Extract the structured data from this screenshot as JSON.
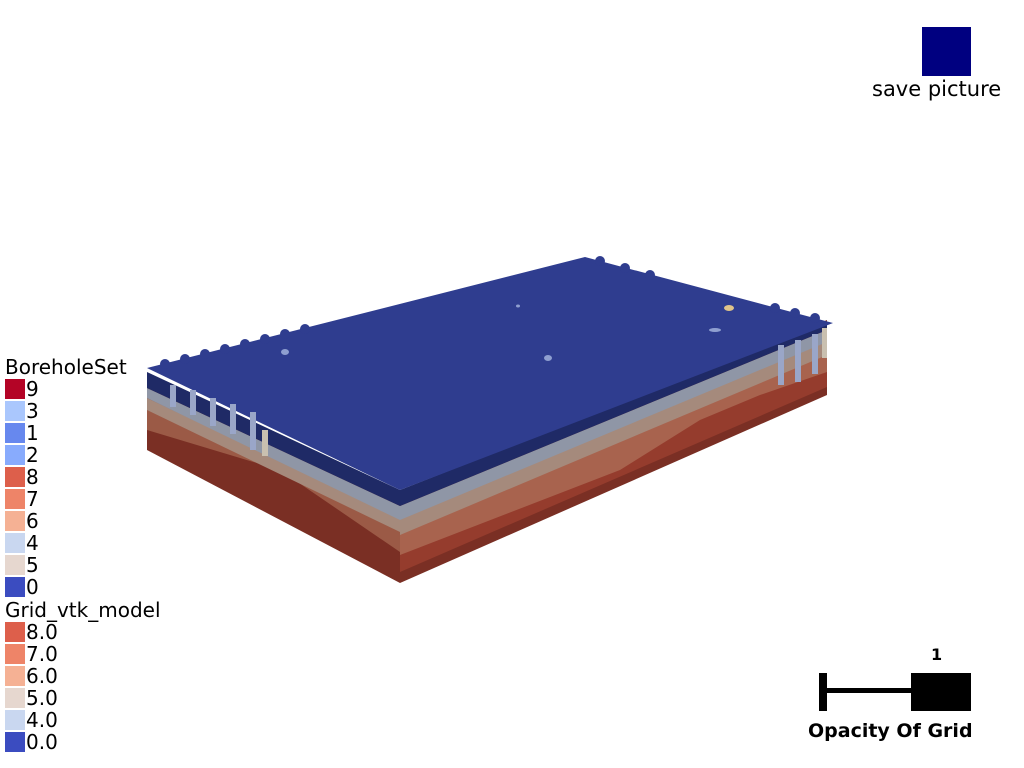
{
  "save_picture": {
    "label": "save picture",
    "color": "#000080"
  },
  "legend_borehole": {
    "title": "BoreholeSet",
    "entries": [
      {
        "label": "9",
        "color": "#b40426"
      },
      {
        "label": "3",
        "color": "#aac7fd"
      },
      {
        "label": "1",
        "color": "#6788ee"
      },
      {
        "label": "2",
        "color": "#88abfd"
      },
      {
        "label": "8",
        "color": "#dd5f4b"
      },
      {
        "label": "7",
        "color": "#ee8468"
      },
      {
        "label": "6",
        "color": "#f5b194"
      },
      {
        "label": "4",
        "color": "#c9d7f0"
      },
      {
        "label": "5",
        "color": "#e6d7cf"
      },
      {
        "label": "0",
        "color": "#3b4cc0"
      }
    ]
  },
  "legend_grid": {
    "title": "Grid_vtk_model",
    "entries": [
      {
        "label": "8.0",
        "color": "#dd5f4b"
      },
      {
        "label": "7.0",
        "color": "#ee8468"
      },
      {
        "label": "6.0",
        "color": "#f5b194"
      },
      {
        "label": "5.0",
        "color": "#e6d7cf"
      },
      {
        "label": "4.0",
        "color": "#c9d7f0"
      },
      {
        "label": "0.0",
        "color": "#3b4cc0"
      }
    ]
  },
  "opacity_slider": {
    "label": "Opacity Of Grid",
    "value": "1",
    "fraction": 1.0
  },
  "model": {
    "top_color": "#2f3d8f",
    "layer_colors": [
      "#1f2a66",
      "#7f8fa6",
      "#a89a90",
      "#b58e77",
      "#9a5a45",
      "#7a2f24"
    ]
  }
}
